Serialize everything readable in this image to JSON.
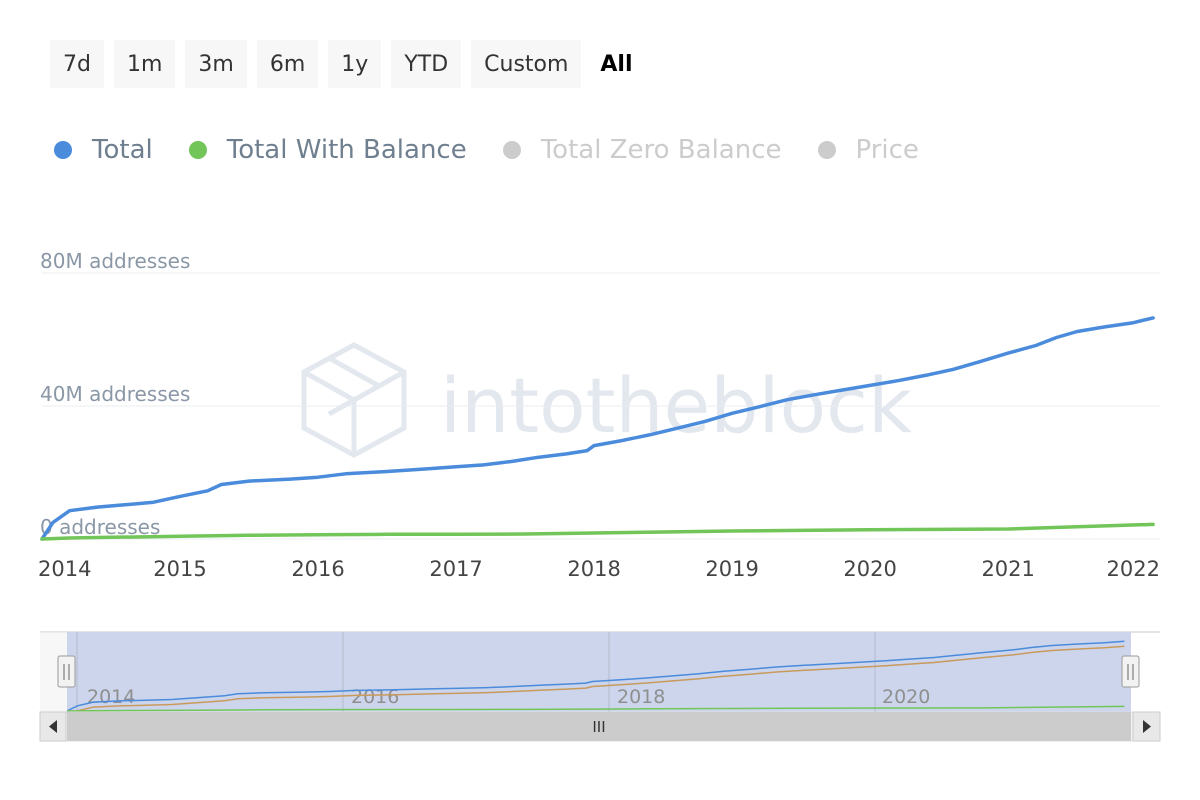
{
  "range_selector": {
    "buttons": [
      {
        "label": "7d",
        "active": false
      },
      {
        "label": "1m",
        "active": false
      },
      {
        "label": "3m",
        "active": false
      },
      {
        "label": "6m",
        "active": false
      },
      {
        "label": "1y",
        "active": false
      },
      {
        "label": "YTD",
        "active": false
      },
      {
        "label": "Custom",
        "active": false
      },
      {
        "label": "All",
        "active": true
      }
    ]
  },
  "legend": [
    {
      "label": "Total",
      "color": "#4a8bdc",
      "visible": true
    },
    {
      "label": "Total With Balance",
      "color": "#72c559",
      "visible": true
    },
    {
      "label": "Total Zero Balance",
      "color": "#cccccc",
      "visible": false
    },
    {
      "label": "Price",
      "color": "#cccccc",
      "visible": false
    }
  ],
  "watermark": "intotheblock",
  "navigator": {
    "labels": [
      "2014",
      "2016",
      "2018",
      "2020"
    ],
    "scroll_handle": "III"
  },
  "chart_data": {
    "type": "line",
    "title": "",
    "xlabel": "",
    "ylabel": "addresses",
    "xlim": [
      2014.0,
      2022.1
    ],
    "ylim": [
      0,
      80
    ],
    "y_unit": "M addresses",
    "y_ticks": [
      {
        "value": 0,
        "label": "0 addresses"
      },
      {
        "value": 40,
        "label": "40M addresses"
      },
      {
        "value": 80,
        "label": "80M addresses"
      }
    ],
    "x_ticks": [
      "2014",
      "2015",
      "2016",
      "2017",
      "2018",
      "2019",
      "2020",
      "2021",
      "2022"
    ],
    "x_tick_values": [
      2014,
      2015,
      2016,
      2017,
      2018,
      2019,
      2020,
      2021,
      2022
    ],
    "grid": true,
    "series": [
      {
        "name": "Total",
        "color": "#4a8bdc",
        "points": [
          [
            2014.0,
            0.0
          ],
          [
            2014.08,
            5.0
          ],
          [
            2014.2,
            8.5
          ],
          [
            2014.4,
            9.6
          ],
          [
            2014.6,
            10.3
          ],
          [
            2014.8,
            11.0
          ],
          [
            2015.0,
            12.8
          ],
          [
            2015.2,
            14.5
          ],
          [
            2015.3,
            16.4
          ],
          [
            2015.5,
            17.4
          ],
          [
            2015.8,
            18.0
          ],
          [
            2016.0,
            18.6
          ],
          [
            2016.2,
            19.6
          ],
          [
            2016.5,
            20.3
          ],
          [
            2016.8,
            21.1
          ],
          [
            2017.0,
            21.7
          ],
          [
            2017.2,
            22.3
          ],
          [
            2017.4,
            23.3
          ],
          [
            2017.6,
            24.6
          ],
          [
            2017.8,
            25.6
          ],
          [
            2017.95,
            26.6
          ],
          [
            2018.0,
            28.1
          ],
          [
            2018.2,
            29.6
          ],
          [
            2018.4,
            31.3
          ],
          [
            2018.6,
            33.3
          ],
          [
            2018.8,
            35.3
          ],
          [
            2019.0,
            37.8
          ],
          [
            2019.2,
            39.8
          ],
          [
            2019.4,
            41.9
          ],
          [
            2019.6,
            43.4
          ],
          [
            2019.8,
            44.8
          ],
          [
            2020.0,
            46.2
          ],
          [
            2020.2,
            47.6
          ],
          [
            2020.4,
            49.2
          ],
          [
            2020.6,
            51.0
          ],
          [
            2020.8,
            53.4
          ],
          [
            2021.0,
            55.9
          ],
          [
            2021.2,
            58.2
          ],
          [
            2021.35,
            60.6
          ],
          [
            2021.5,
            62.4
          ],
          [
            2021.7,
            63.8
          ],
          [
            2021.9,
            65.0
          ],
          [
            2022.05,
            66.5
          ]
        ]
      },
      {
        "name": "Total With Balance",
        "color": "#72c559",
        "points": [
          [
            2014.0,
            0.0
          ],
          [
            2014.2,
            0.3
          ],
          [
            2014.5,
            0.5
          ],
          [
            2015.0,
            0.8
          ],
          [
            2015.5,
            1.1
          ],
          [
            2016.0,
            1.3
          ],
          [
            2016.5,
            1.4
          ],
          [
            2017.0,
            1.4
          ],
          [
            2017.5,
            1.5
          ],
          [
            2018.0,
            1.8
          ],
          [
            2018.5,
            2.1
          ],
          [
            2019.0,
            2.4
          ],
          [
            2019.5,
            2.6
          ],
          [
            2020.0,
            2.8
          ],
          [
            2020.5,
            2.9
          ],
          [
            2021.0,
            3.0
          ],
          [
            2021.5,
            3.7
          ],
          [
            2022.05,
            4.4
          ]
        ]
      }
    ]
  }
}
